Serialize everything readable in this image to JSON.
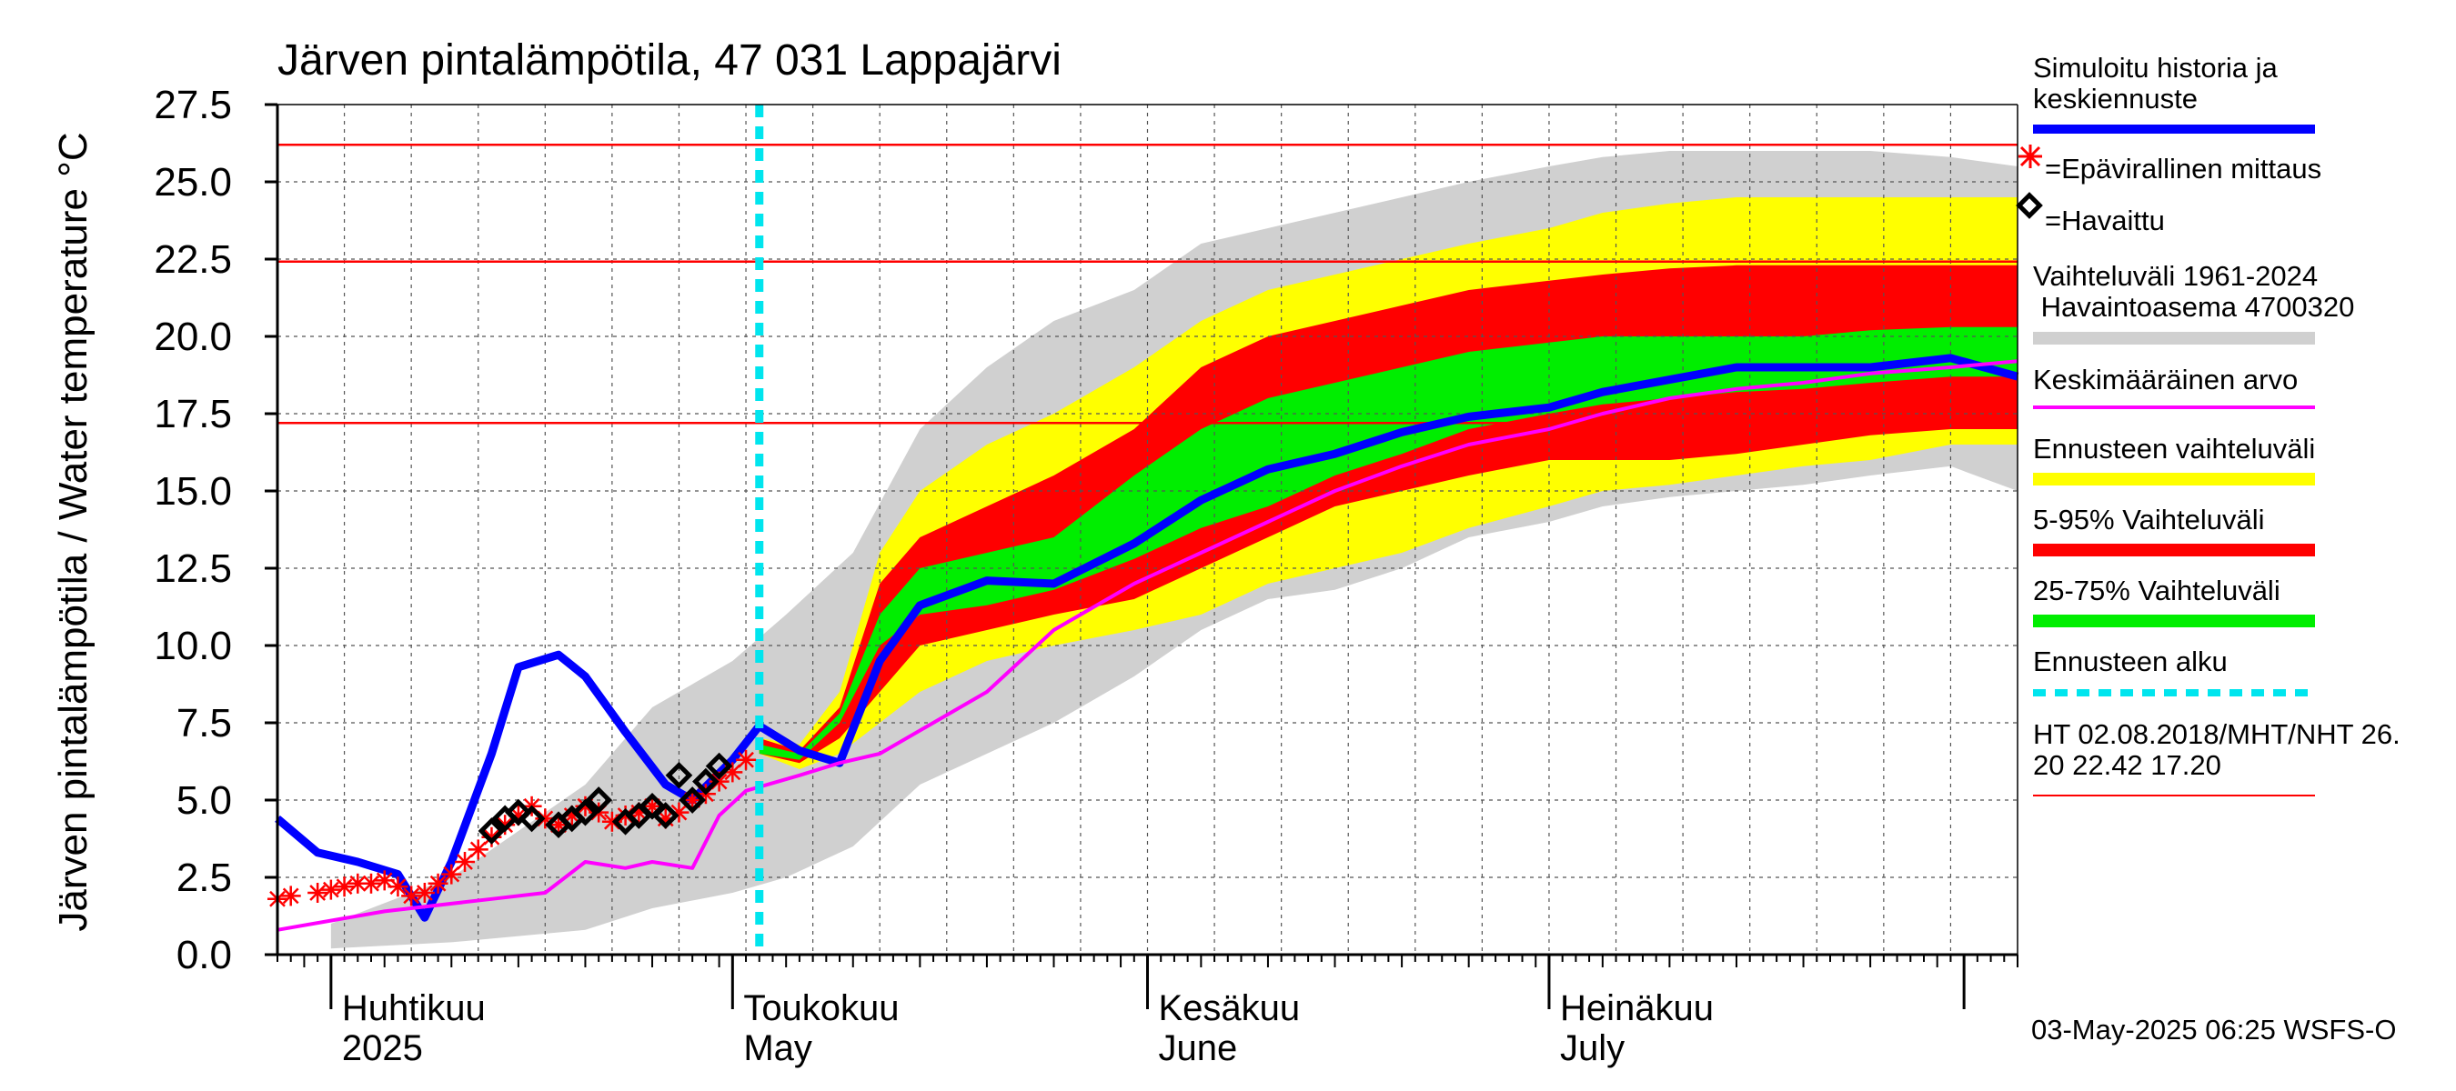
{
  "chart_data": {
    "type": "area",
    "title": "Järven pintalämpötila, 47 031 Lappajärvi",
    "ylabel": "Järven pintalämpötila / Water temperature °C",
    "ylim": [
      0,
      27.5
    ],
    "y_ticks": [
      "0.0",
      "2.5",
      "5.0",
      "7.5",
      "10.0",
      "12.5",
      "15.0",
      "17.5",
      "20.0",
      "22.5",
      "25.0",
      "27.5"
    ],
    "x_range": [
      "2025-03-28",
      "2025-08-05"
    ],
    "month_labels": [
      {
        "fi": "Huhtikuu",
        "en": "2025",
        "date": "2025-04-01"
      },
      {
        "fi": "Toukokuu",
        "en": "May",
        "date": "2025-05-01"
      },
      {
        "fi": "Kesäkuu",
        "en": "June",
        "date": "2025-06-01"
      },
      {
        "fi": "Heinäkuu",
        "en": "July",
        "date": "2025-07-01"
      }
    ],
    "forecast_start": "2025-05-03",
    "hlines": [
      {
        "label": "HT 02.08.2018",
        "value": 26.2
      },
      {
        "label": "MHT",
        "value": 22.42
      },
      {
        "label": "NHT",
        "value": 17.2
      }
    ],
    "series": [
      {
        "name": "Vaihteluväli 1961-2024 Havaintoasema 4700320",
        "color": "#d0d0d0",
        "type": "band",
        "x": [
          "2025-04-01",
          "2025-04-10",
          "2025-04-20",
          "2025-04-25",
          "2025-05-01",
          "2025-05-05",
          "2025-05-10",
          "2025-05-15",
          "2025-05-20",
          "2025-05-25",
          "2025-05-31",
          "2025-06-05",
          "2025-06-10",
          "2025-06-15",
          "2025-06-20",
          "2025-06-25",
          "2025-07-01",
          "2025-07-05",
          "2025-07-10",
          "2025-07-15",
          "2025-07-20",
          "2025-07-25",
          "2025-07-31",
          "2025-08-05"
        ],
        "low": [
          0.2,
          0.4,
          0.8,
          1.5,
          2.0,
          2.5,
          3.5,
          5.5,
          6.5,
          7.5,
          9.0,
          10.5,
          11.5,
          11.8,
          12.5,
          13.5,
          14.0,
          14.5,
          14.8,
          15.0,
          15.2,
          15.5,
          15.8,
          15.0
        ],
        "high": [
          1.0,
          2.5,
          5.5,
          8.0,
          9.5,
          11.0,
          13.0,
          17.0,
          19.0,
          20.5,
          21.5,
          23.0,
          23.5,
          24.0,
          24.5,
          25.0,
          25.5,
          25.8,
          26.0,
          26.0,
          26.0,
          26.0,
          25.8,
          25.5
        ]
      },
      {
        "name": "Ennusteen vaihteluväli",
        "color": "#ffff00",
        "type": "band",
        "x": [
          "2025-05-03",
          "2025-05-06",
          "2025-05-09",
          "2025-05-12",
          "2025-05-15",
          "2025-05-20",
          "2025-05-25",
          "2025-05-31",
          "2025-06-05",
          "2025-06-10",
          "2025-06-15",
          "2025-06-20",
          "2025-06-25",
          "2025-07-01",
          "2025-07-05",
          "2025-07-10",
          "2025-07-15",
          "2025-07-20",
          "2025-07-25",
          "2025-07-31",
          "2025-08-05"
        ],
        "low": [
          6.5,
          6.0,
          6.5,
          7.5,
          8.5,
          9.5,
          10.0,
          10.5,
          11.0,
          12.0,
          12.5,
          13.0,
          13.8,
          14.5,
          15.0,
          15.2,
          15.5,
          15.8,
          16.0,
          16.5,
          16.5
        ],
        "high": [
          7.0,
          6.8,
          8.5,
          13.0,
          15.0,
          16.5,
          17.5,
          19.0,
          20.5,
          21.5,
          22.0,
          22.5,
          23.0,
          23.5,
          24.0,
          24.3,
          24.5,
          24.5,
          24.5,
          24.5,
          24.5
        ]
      },
      {
        "name": "5-95% Vaihteluväli",
        "color": "#ff0000",
        "type": "band",
        "x": [
          "2025-05-03",
          "2025-05-06",
          "2025-05-09",
          "2025-05-12",
          "2025-05-15",
          "2025-05-20",
          "2025-05-25",
          "2025-05-31",
          "2025-06-05",
          "2025-06-10",
          "2025-06-15",
          "2025-06-20",
          "2025-06-25",
          "2025-07-01",
          "2025-07-05",
          "2025-07-10",
          "2025-07-15",
          "2025-07-20",
          "2025-07-25",
          "2025-07-31",
          "2025-08-05"
        ],
        "low": [
          6.5,
          6.2,
          7.0,
          8.5,
          10.0,
          10.5,
          11.0,
          11.5,
          12.5,
          13.5,
          14.5,
          15.0,
          15.5,
          16.0,
          16.0,
          16.0,
          16.2,
          16.5,
          16.8,
          17.0,
          17.0
        ],
        "high": [
          7.0,
          6.6,
          8.0,
          12.0,
          13.5,
          14.5,
          15.5,
          17.0,
          19.0,
          20.0,
          20.5,
          21.0,
          21.5,
          21.8,
          22.0,
          22.2,
          22.3,
          22.3,
          22.3,
          22.3,
          22.3
        ]
      },
      {
        "name": "25-75% Vaihteluväli",
        "color": "#00ee00",
        "type": "band",
        "x": [
          "2025-05-03",
          "2025-05-06",
          "2025-05-09",
          "2025-05-12",
          "2025-05-15",
          "2025-05-20",
          "2025-05-25",
          "2025-05-31",
          "2025-06-05",
          "2025-06-10",
          "2025-06-15",
          "2025-06-20",
          "2025-06-25",
          "2025-07-01",
          "2025-07-05",
          "2025-07-10",
          "2025-07-15",
          "2025-07-20",
          "2025-07-25",
          "2025-07-31",
          "2025-08-05"
        ],
        "low": [
          6.5,
          6.3,
          7.5,
          10.0,
          11.0,
          11.3,
          11.8,
          12.8,
          13.8,
          14.5,
          15.5,
          16.2,
          17.0,
          17.5,
          17.8,
          18.0,
          18.2,
          18.3,
          18.5,
          18.7,
          18.7
        ],
        "high": [
          6.8,
          6.5,
          7.8,
          11.0,
          12.5,
          13.0,
          13.5,
          15.5,
          17.0,
          18.0,
          18.5,
          19.0,
          19.5,
          19.8,
          20.0,
          20.0,
          20.0,
          20.0,
          20.2,
          20.3,
          20.3
        ]
      },
      {
        "name": "Simuloitu historia ja keskiennuste",
        "color": "#0000ff",
        "type": "line",
        "x": [
          "2025-03-28",
          "2025-03-31",
          "2025-04-03",
          "2025-04-06",
          "2025-04-08",
          "2025-04-10",
          "2025-04-13",
          "2025-04-15",
          "2025-04-18",
          "2025-04-20",
          "2025-04-23",
          "2025-04-26",
          "2025-04-28",
          "2025-05-01",
          "2025-05-03",
          "2025-05-06",
          "2025-05-09",
          "2025-05-12",
          "2025-05-15",
          "2025-05-20",
          "2025-05-25",
          "2025-05-31",
          "2025-06-05",
          "2025-06-10",
          "2025-06-15",
          "2025-06-20",
          "2025-06-25",
          "2025-07-01",
          "2025-07-05",
          "2025-07-10",
          "2025-07-15",
          "2025-07-20",
          "2025-07-25",
          "2025-07-31",
          "2025-08-05"
        ],
        "values": [
          4.4,
          3.3,
          3.0,
          2.6,
          1.2,
          3.0,
          6.5,
          9.3,
          9.7,
          9.0,
          7.2,
          5.5,
          5.0,
          6.3,
          7.4,
          6.6,
          6.2,
          9.5,
          11.3,
          12.1,
          12.0,
          13.3,
          14.7,
          15.7,
          16.2,
          16.9,
          17.4,
          17.7,
          18.2,
          18.6,
          19.0,
          19.0,
          19.0,
          19.3,
          18.7
        ]
      },
      {
        "name": "Keskimääräinen arvo",
        "color": "#ff00ff",
        "type": "line",
        "x": [
          "2025-03-28",
          "2025-04-05",
          "2025-04-13",
          "2025-04-17",
          "2025-04-20",
          "2025-04-23",
          "2025-04-25",
          "2025-04-28",
          "2025-04-30",
          "2025-05-02",
          "2025-05-06",
          "2025-05-09",
          "2025-05-12",
          "2025-05-16",
          "2025-05-20",
          "2025-05-25",
          "2025-05-31",
          "2025-06-05",
          "2025-06-10",
          "2025-06-15",
          "2025-06-20",
          "2025-06-25",
          "2025-07-01",
          "2025-07-05",
          "2025-07-10",
          "2025-07-15",
          "2025-07-20",
          "2025-07-25",
          "2025-07-31",
          "2025-08-05"
        ],
        "values": [
          0.8,
          1.4,
          1.8,
          2.0,
          3.0,
          2.8,
          3.0,
          2.8,
          4.5,
          5.3,
          5.8,
          6.2,
          6.5,
          7.5,
          8.5,
          10.5,
          12.0,
          13.0,
          14.0,
          15.0,
          15.8,
          16.5,
          17.0,
          17.5,
          18.0,
          18.3,
          18.5,
          18.8,
          19.0,
          19.2
        ]
      },
      {
        "name": "Epävirallinen mittaus",
        "color": "#ff0000",
        "type": "scatter",
        "marker": "star",
        "x": [
          "2025-03-28",
          "2025-03-29",
          "2025-03-31",
          "2025-04-01",
          "2025-04-02",
          "2025-04-03",
          "2025-04-04",
          "2025-04-05",
          "2025-04-06",
          "2025-04-07",
          "2025-04-08",
          "2025-04-09",
          "2025-04-10",
          "2025-04-11",
          "2025-04-12",
          "2025-04-13",
          "2025-04-14",
          "2025-04-15",
          "2025-04-16",
          "2025-04-17",
          "2025-04-18",
          "2025-04-19",
          "2025-04-20",
          "2025-04-21",
          "2025-04-22",
          "2025-04-23",
          "2025-04-24",
          "2025-04-25",
          "2025-04-26",
          "2025-04-27",
          "2025-04-28",
          "2025-04-29",
          "2025-04-30",
          "2025-05-01",
          "2025-05-02"
        ],
        "values": [
          1.8,
          1.9,
          2.0,
          2.1,
          2.2,
          2.3,
          2.3,
          2.4,
          2.2,
          1.9,
          2.0,
          2.3,
          2.6,
          3.0,
          3.4,
          3.8,
          4.2,
          4.5,
          4.8,
          4.4,
          4.2,
          4.5,
          4.8,
          4.6,
          4.3,
          4.5,
          4.6,
          4.8,
          4.4,
          4.6,
          5.0,
          5.2,
          5.6,
          5.9,
          6.3
        ]
      },
      {
        "name": "Havaittu",
        "color": "#000000",
        "type": "scatter",
        "marker": "diamond",
        "x": [
          "2025-04-13",
          "2025-04-14",
          "2025-04-15",
          "2025-04-16",
          "2025-04-18",
          "2025-04-19",
          "2025-04-20",
          "2025-04-21",
          "2025-04-23",
          "2025-04-24",
          "2025-04-25",
          "2025-04-26",
          "2025-04-27",
          "2025-04-28",
          "2025-04-29",
          "2025-04-30"
        ],
        "values": [
          4.0,
          4.4,
          4.6,
          4.4,
          4.2,
          4.4,
          4.6,
          5.0,
          4.3,
          4.5,
          4.8,
          4.5,
          5.8,
          5.0,
          5.6,
          6.1
        ]
      }
    ]
  },
  "legend": {
    "sim": "Simuloitu historia ja",
    "sim2": "keskiennuste",
    "unoff": "=Epävirallinen mittaus",
    "obs": "=Havaittu",
    "range": "Vaihteluväli 1961-2024",
    "range2": " Havaintoasema 4700320",
    "mean": "Keskimääräinen arvo",
    "fc_range": "Ennusteen vaihteluväli",
    "p595": "5-95% Vaihteluväli",
    "p2575": "25-75% Vaihteluväli",
    "fc_start": "Ennusteen alku",
    "ht": "HT 02.08.2018/MHT/NHT 26.",
    "ht2": "20 22.42 17.20"
  },
  "timestamp": "03-May-2025 06:25 WSFS-O",
  "colors": {
    "blue": "#0000ff",
    "magenta": "#ff00ff",
    "red": "#ff0000",
    "yellow": "#ffff00",
    "green": "#00ee00",
    "grey": "#d0d0d0",
    "cyan": "#00e5ee"
  }
}
